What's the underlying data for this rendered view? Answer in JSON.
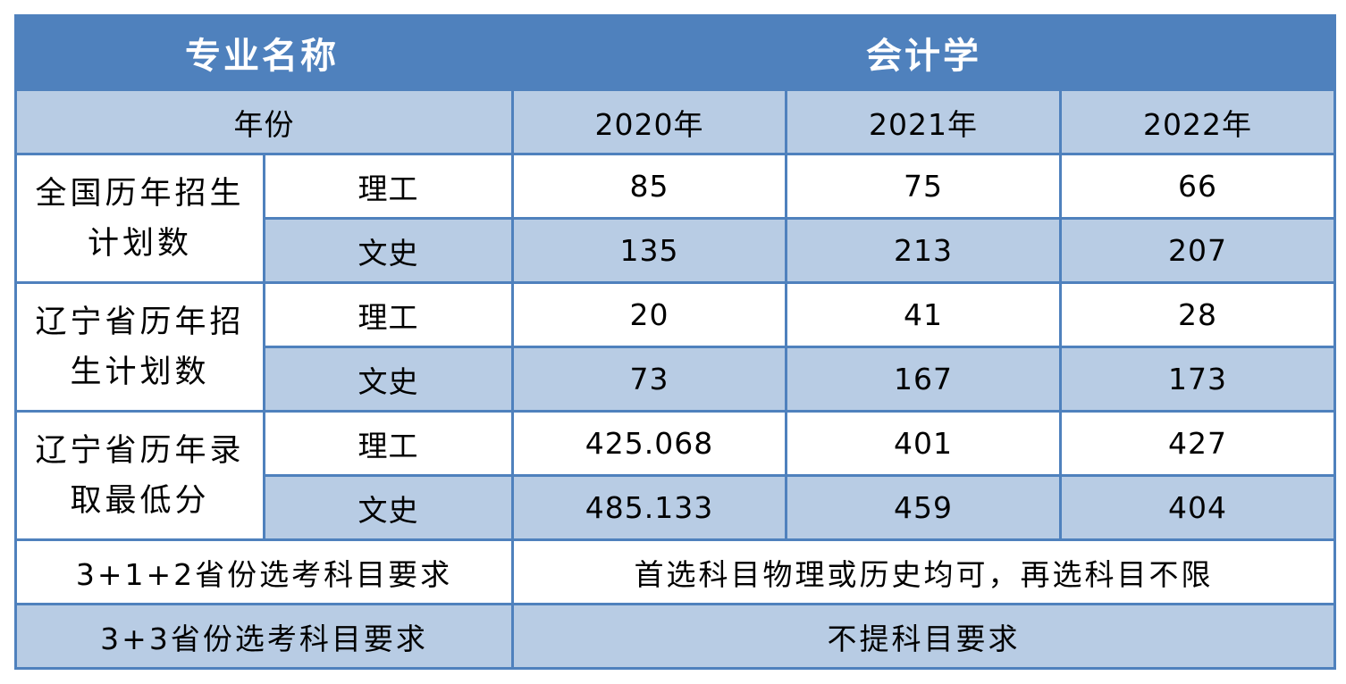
{
  "header": {
    "col1": "专业名称",
    "col2": "会计学"
  },
  "years_row": {
    "label": "年份",
    "years": [
      "2020年",
      "2021年",
      "2022年"
    ]
  },
  "groups": [
    {
      "title_line1": "全国历年招生",
      "title_line2": "计划数",
      "rows": [
        {
          "type": "理工",
          "values": [
            "85",
            "75",
            "66"
          ]
        },
        {
          "type": "文史",
          "values": [
            "135",
            "213",
            "207"
          ]
        }
      ]
    },
    {
      "title_line1": "辽宁省历年招",
      "title_line2": "生计划数",
      "rows": [
        {
          "type": "理工",
          "values": [
            "20",
            "41",
            "28"
          ]
        },
        {
          "type": "文史",
          "values": [
            "73",
            "167",
            "173"
          ]
        }
      ]
    },
    {
      "title_line1": "辽宁省历年录",
      "title_line2": "取最低分",
      "rows": [
        {
          "type": "理工",
          "values": [
            "425.068",
            "401",
            "427"
          ]
        },
        {
          "type": "文史",
          "values": [
            "485.133",
            "459",
            "404"
          ]
        }
      ]
    }
  ],
  "requirements": [
    {
      "label": "3+1+2省份选考科目要求",
      "value": "首选科目物理或历史均可，再选科目不限"
    },
    {
      "label": "3+3省份选考科目要求",
      "value": "不提科目要求"
    }
  ],
  "colors": {
    "header_bg": "#4f81bd",
    "light_row_bg": "#b8cce4",
    "border": "#4f81bd"
  }
}
